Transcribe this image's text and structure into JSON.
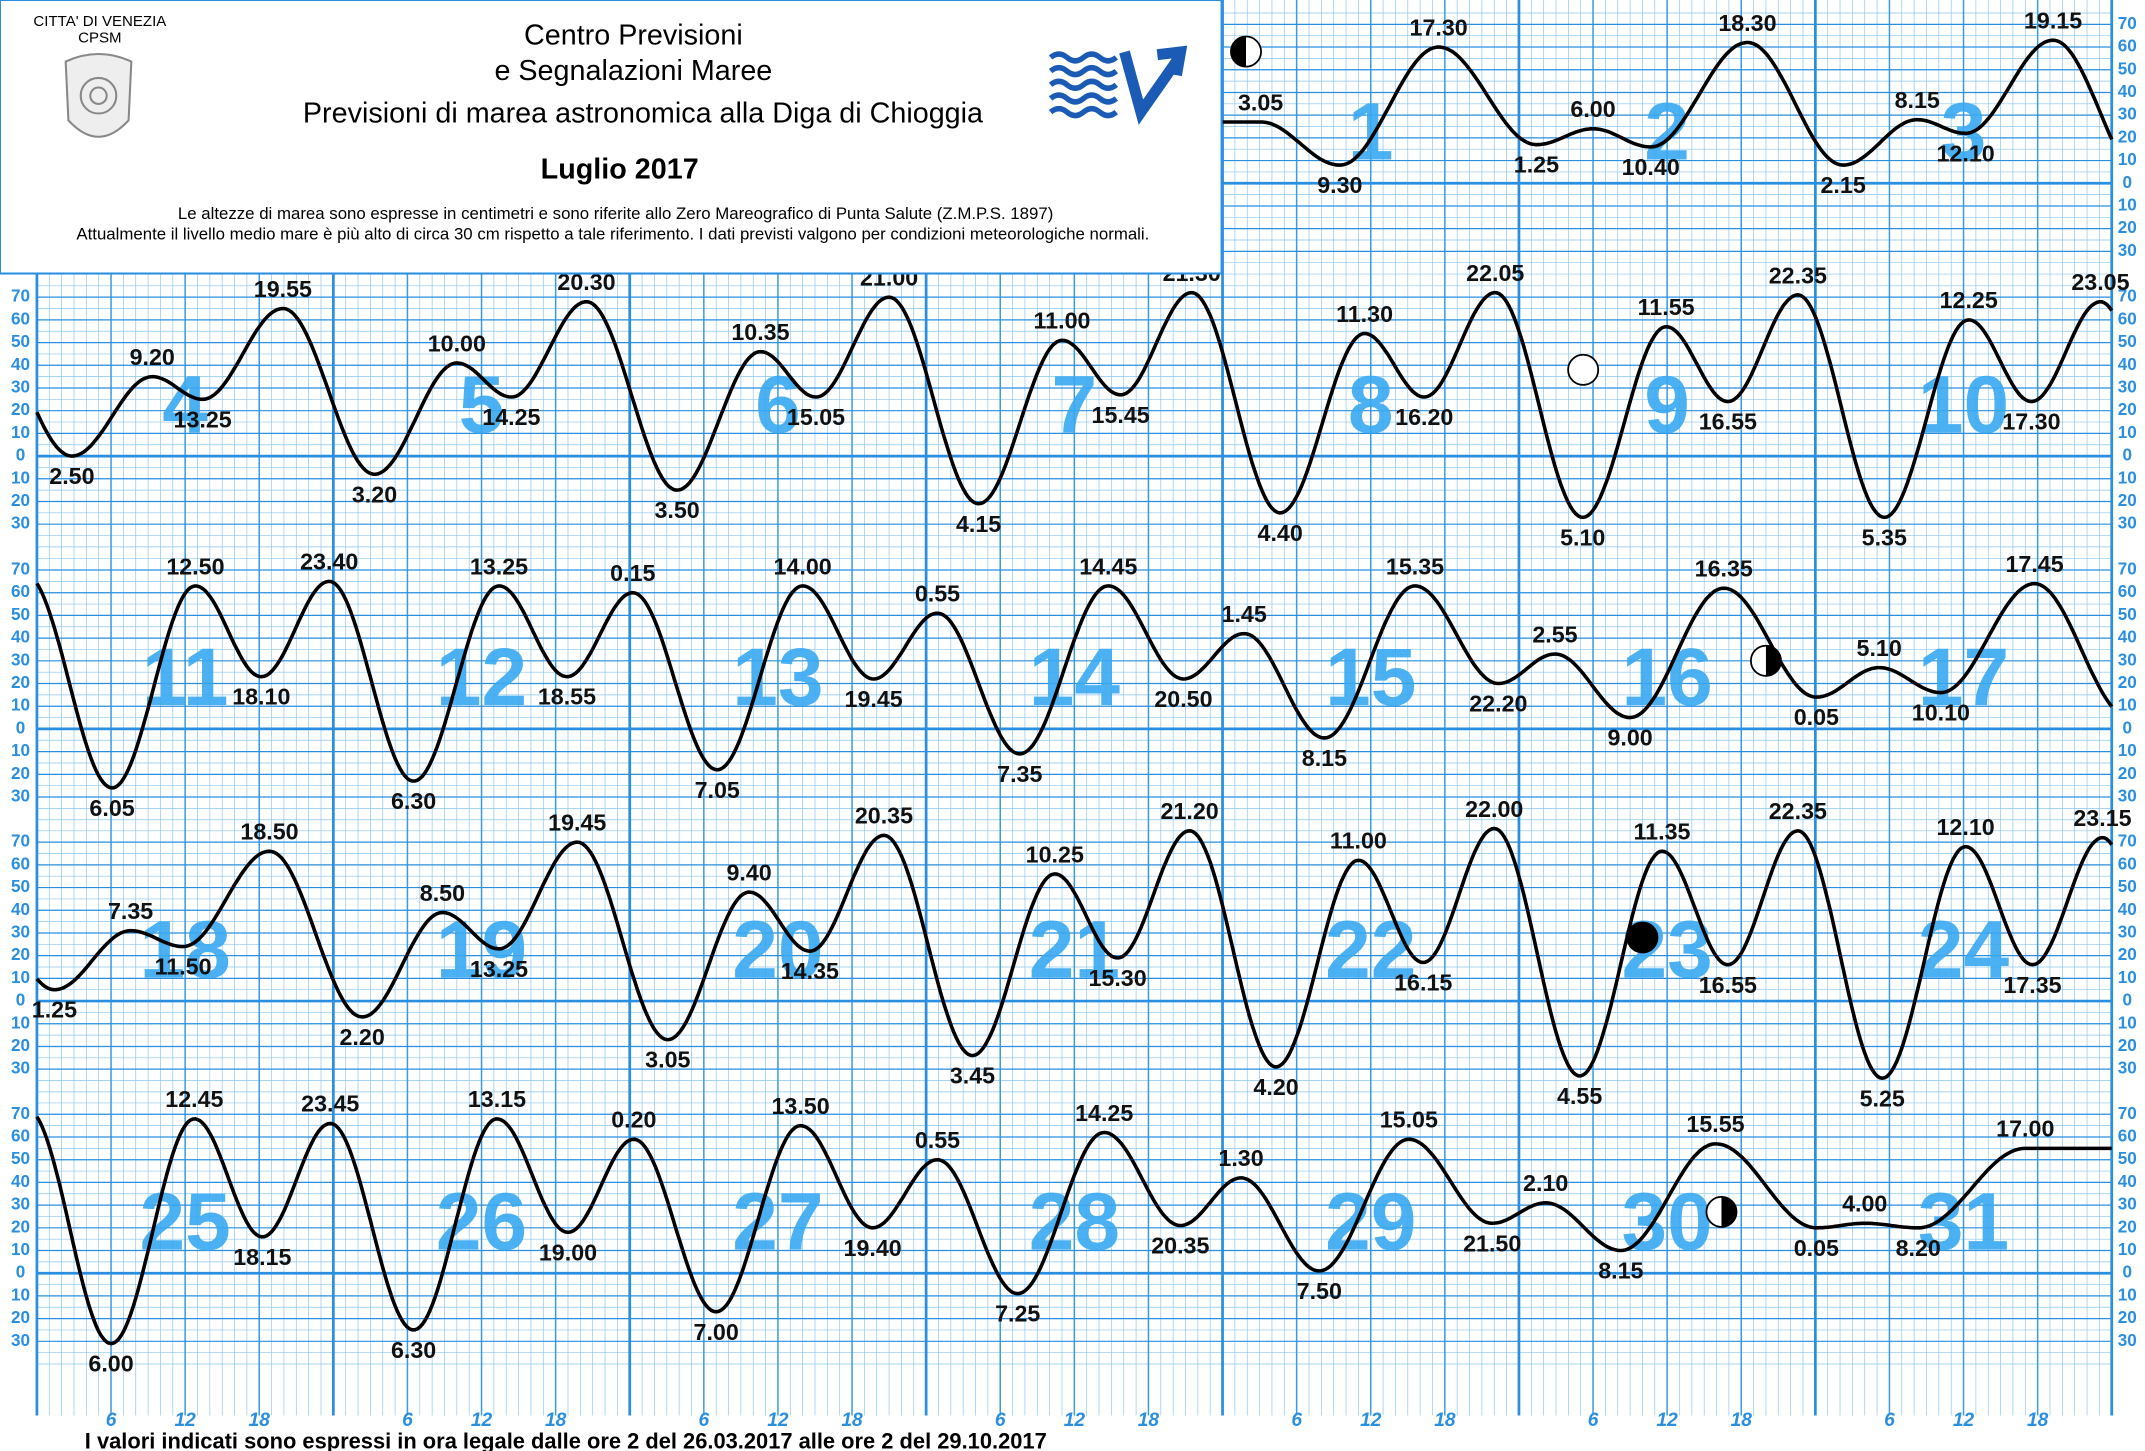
{
  "header": {
    "org": "CITTA' DI VENEZIA",
    "org2": "CPSM",
    "title1": "Centro Previsioni",
    "title2": "e Segnalazioni Maree",
    "title3": "Previsioni di marea astronomica alla Diga di Chioggia",
    "month": "Luglio 2017",
    "note1": "Le altezze di marea sono espresse in centimetri e sono riferite allo Zero Mareografico di Punta Salute (Z.M.P.S. 1897)",
    "note2": "Attualmente il livello medio mare è più alto di circa 30 cm rispetto a tale riferimento. I dati previsti valgono per condizioni meteorologiche normali."
  },
  "chart_data": {
    "type": "line",
    "ylim": [
      -40,
      75
    ],
    "xlim": [
      0,
      24
    ],
    "xticks": [
      6,
      12,
      18
    ],
    "yticks": [
      {
        "value": -30,
        "label": "30"
      },
      {
        "value": -20,
        "label": "20"
      },
      {
        "value": -10,
        "label": "10"
      },
      0,
      10,
      20,
      30,
      40,
      50,
      60,
      70
    ],
    "days": [
      {
        "day": 1,
        "extremes": [
          {
            "time": "3.05",
            "level": 27
          },
          {
            "time": "9.30",
            "level": 8
          },
          {
            "time": "17.30",
            "level": 60
          }
        ]
      },
      {
        "day": 2,
        "extremes": [
          {
            "time": "1.25",
            "level": 17
          },
          {
            "time": "6.00",
            "level": 24
          },
          {
            "time": "10.40",
            "level": 16
          },
          {
            "time": "18.30",
            "level": 62
          }
        ]
      },
      {
        "day": 3,
        "extremes": [
          {
            "time": "2.15",
            "level": 8
          },
          {
            "time": "8.15",
            "level": 28
          },
          {
            "time": "12.10",
            "level": 22
          },
          {
            "time": "19.15",
            "level": 63
          }
        ]
      },
      {
        "day": 4,
        "extremes": [
          {
            "time": "2.50",
            "level": 0
          },
          {
            "time": "9.20",
            "level": 35
          },
          {
            "time": "13.25",
            "level": 25
          },
          {
            "time": "19.55",
            "level": 65
          }
        ]
      },
      {
        "day": 5,
        "extremes": [
          {
            "time": "3.20",
            "level": -8
          },
          {
            "time": "10.00",
            "level": 41
          },
          {
            "time": "14.25",
            "level": 26
          },
          {
            "time": "20.30",
            "level": 68
          }
        ]
      },
      {
        "day": 6,
        "extremes": [
          {
            "time": "3.50",
            "level": -15
          },
          {
            "time": "10.35",
            "level": 46
          },
          {
            "time": "15.05",
            "level": 26
          },
          {
            "time": "21.00",
            "level": 70
          }
        ]
      },
      {
        "day": 7,
        "extremes": [
          {
            "time": "4.15",
            "level": -21
          },
          {
            "time": "11.00",
            "level": 51
          },
          {
            "time": "15.45",
            "level": 27
          },
          {
            "time": "21.30",
            "level": 72
          }
        ]
      },
      {
        "day": 8,
        "extremes": [
          {
            "time": "4.40",
            "level": -25
          },
          {
            "time": "11.30",
            "level": 54
          },
          {
            "time": "16.20",
            "level": 26
          },
          {
            "time": "22.05",
            "level": 72
          }
        ]
      },
      {
        "day": 9,
        "extremes": [
          {
            "time": "5.10",
            "level": -27
          },
          {
            "time": "11.55",
            "level": 57
          },
          {
            "time": "16.55",
            "level": 24
          },
          {
            "time": "22.35",
            "level": 71
          }
        ]
      },
      {
        "day": 10,
        "extremes": [
          {
            "time": "5.35",
            "level": -27
          },
          {
            "time": "12.25",
            "level": 60
          },
          {
            "time": "17.30",
            "level": 24
          },
          {
            "time": "23.05",
            "level": 68
          }
        ]
      },
      {
        "day": 11,
        "extremes": [
          {
            "time": "6.05",
            "level": -26
          },
          {
            "time": "12.50",
            "level": 63
          },
          {
            "time": "18.10",
            "level": 23
          },
          {
            "time": "23.40",
            "level": 65
          }
        ]
      },
      {
        "day": 12,
        "extremes": [
          {
            "time": "6.30",
            "level": -23
          },
          {
            "time": "13.25",
            "level": 63
          },
          {
            "time": "18.55",
            "level": 23
          }
        ]
      },
      {
        "day": 13,
        "extremes": [
          {
            "time": "0.15",
            "level": 60
          },
          {
            "time": "7.05",
            "level": -18
          },
          {
            "time": "14.00",
            "level": 63
          },
          {
            "time": "19.45",
            "level": 22
          }
        ]
      },
      {
        "day": 14,
        "extremes": [
          {
            "time": "0.55",
            "level": 51
          },
          {
            "time": "7.35",
            "level": -11
          },
          {
            "time": "14.45",
            "level": 63
          },
          {
            "time": "20.50",
            "level": 22
          }
        ]
      },
      {
        "day": 15,
        "extremes": [
          {
            "time": "1.45",
            "level": 42
          },
          {
            "time": "8.15",
            "level": -4
          },
          {
            "time": "15.35",
            "level": 63
          },
          {
            "time": "22.20",
            "level": 20
          }
        ]
      },
      {
        "day": 16,
        "extremes": [
          {
            "time": "2.55",
            "level": 33
          },
          {
            "time": "9.00",
            "level": 5
          },
          {
            "time": "16.35",
            "level": 62
          }
        ]
      },
      {
        "day": 17,
        "extremes": [
          {
            "time": "0.05",
            "level": 14
          },
          {
            "time": "5.10",
            "level": 27
          },
          {
            "time": "10.10",
            "level": 16
          },
          {
            "time": "17.45",
            "level": 64
          }
        ]
      },
      {
        "day": 18,
        "extremes": [
          {
            "time": "1.25",
            "level": 5
          },
          {
            "time": "7.35",
            "level": 31
          },
          {
            "time": "11.50",
            "level": 24
          },
          {
            "time": "18.50",
            "level": 66
          }
        ]
      },
      {
        "day": 19,
        "extremes": [
          {
            "time": "2.20",
            "level": -7
          },
          {
            "time": "8.50",
            "level": 39
          },
          {
            "time": "13.25",
            "level": 23
          },
          {
            "time": "19.45",
            "level": 70
          }
        ]
      },
      {
        "day": 20,
        "extremes": [
          {
            "time": "3.05",
            "level": -17
          },
          {
            "time": "9.40",
            "level": 48
          },
          {
            "time": "14.35",
            "level": 22
          },
          {
            "time": "20.35",
            "level": 73
          }
        ]
      },
      {
        "day": 21,
        "extremes": [
          {
            "time": "3.45",
            "level": -24
          },
          {
            "time": "10.25",
            "level": 56
          },
          {
            "time": "15.30",
            "level": 19
          },
          {
            "time": "21.20",
            "level": 75
          }
        ]
      },
      {
        "day": 22,
        "extremes": [
          {
            "time": "4.20",
            "level": -29
          },
          {
            "time": "11.00",
            "level": 62
          },
          {
            "time": "16.15",
            "level": 17
          },
          {
            "time": "22.00",
            "level": 76
          }
        ]
      },
      {
        "day": 23,
        "extremes": [
          {
            "time": "4.55",
            "level": -33
          },
          {
            "time": "11.35",
            "level": 66
          },
          {
            "time": "16.55",
            "level": 16
          },
          {
            "time": "22.35",
            "level": 75
          }
        ]
      },
      {
        "day": 24,
        "extremes": [
          {
            "time": "5.25",
            "level": -34
          },
          {
            "time": "12.10",
            "level": 68
          },
          {
            "time": "17.35",
            "level": 16
          },
          {
            "time": "23.15",
            "level": 72
          }
        ]
      },
      {
        "day": 25,
        "extremes": [
          {
            "time": "6.00",
            "level": -31
          },
          {
            "time": "12.45",
            "level": 68
          },
          {
            "time": "18.15",
            "level": 16
          },
          {
            "time": "23.45",
            "level": 66
          }
        ]
      },
      {
        "day": 26,
        "extremes": [
          {
            "time": "6.30",
            "level": -25
          },
          {
            "time": "13.15",
            "level": 68
          },
          {
            "time": "19.00",
            "level": 18
          }
        ]
      },
      {
        "day": 27,
        "extremes": [
          {
            "time": "0.20",
            "level": 59
          },
          {
            "time": "7.00",
            "level": -17
          },
          {
            "time": "13.50",
            "level": 65
          },
          {
            "time": "19.40",
            "level": 20
          }
        ]
      },
      {
        "day": 28,
        "extremes": [
          {
            "time": "0.55",
            "level": 50
          },
          {
            "time": "7.25",
            "level": -9
          },
          {
            "time": "14.25",
            "level": 62
          },
          {
            "time": "20.35",
            "level": 21
          }
        ]
      },
      {
        "day": 29,
        "extremes": [
          {
            "time": "1.30",
            "level": 42
          },
          {
            "time": "7.50",
            "level": 1
          },
          {
            "time": "15.05",
            "level": 59
          },
          {
            "time": "21.50",
            "level": 22
          }
        ]
      },
      {
        "day": 30,
        "extremes": [
          {
            "time": "2.10",
            "level": 31
          },
          {
            "time": "8.15",
            "level": 10
          },
          {
            "time": "15.55",
            "level": 57
          }
        ]
      },
      {
        "day": 31,
        "extremes": [
          {
            "time": "0.05",
            "level": 20
          },
          {
            "time": "4.00",
            "level": 22
          },
          {
            "time": "8.20",
            "level": 20
          },
          {
            "time": "17.00",
            "level": 55
          }
        ]
      }
    ]
  },
  "footer": "I valori indicati sono espressi in ora legale dalle ore 2 del 26.03.2017 alle ore 2 del 29.10.2017"
}
